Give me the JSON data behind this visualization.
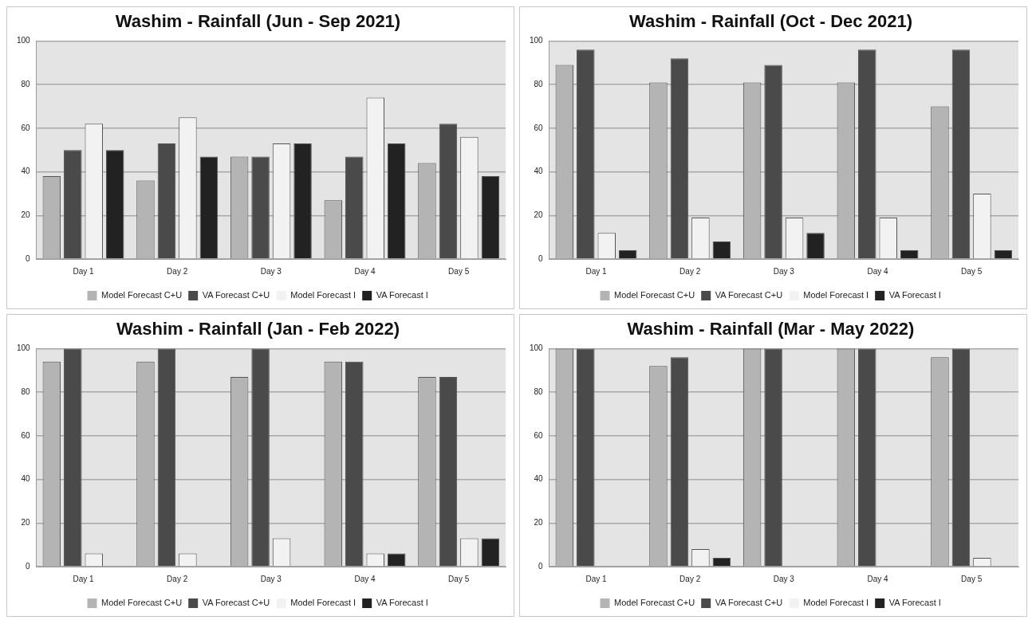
{
  "chart_data": [
    {
      "type": "bar",
      "title": "Washim - Rainfall (Jun - Sep 2021)",
      "categories": [
        "Day 1",
        "Day 2",
        "Day 3",
        "Day 4",
        "Day 5"
      ],
      "ylim": [
        0,
        100
      ],
      "yticks": [
        0,
        20,
        40,
        60,
        80,
        100
      ],
      "grid": "y",
      "legend": "bottom",
      "series": [
        {
          "name": "Model Forecast C+U",
          "color": "#b4b4b4",
          "values": [
            38,
            36,
            47,
            27,
            44
          ]
        },
        {
          "name": "VA Forecast C+U",
          "color": "#4a4a4a",
          "values": [
            50,
            53,
            47,
            47,
            62
          ]
        },
        {
          "name": "Model Forecast I",
          "color": "#f2f2f2",
          "values": [
            62,
            65,
            53,
            74,
            56
          ]
        },
        {
          "name": "VA Forecast I",
          "color": "#222222",
          "values": [
            50,
            47,
            53,
            53,
            38
          ]
        }
      ]
    },
    {
      "type": "bar",
      "title": "Washim - Rainfall (Oct - Dec 2021)",
      "categories": [
        "Day 1",
        "Day 2",
        "Day 3",
        "Day 4",
        "Day 5"
      ],
      "ylim": [
        0,
        100
      ],
      "yticks": [
        0,
        20,
        40,
        60,
        80,
        100
      ],
      "grid": "y",
      "legend": "bottom",
      "series": [
        {
          "name": "Model Forecast C+U",
          "color": "#b4b4b4",
          "values": [
            89,
            81,
            81,
            81,
            70
          ]
        },
        {
          "name": "VA Forecast C+U",
          "color": "#4a4a4a",
          "values": [
            96,
            92,
            89,
            96,
            96
          ]
        },
        {
          "name": "Model Forecast I",
          "color": "#f2f2f2",
          "values": [
            12,
            19,
            19,
            19,
            30
          ]
        },
        {
          "name": "VA Forecast I",
          "color": "#222222",
          "values": [
            4,
            8,
            12,
            4,
            4
          ]
        }
      ]
    },
    {
      "type": "bar",
      "title": "Washim - Rainfall (Jan - Feb 2022)",
      "categories": [
        "Day 1",
        "Day 2",
        "Day 3",
        "Day 4",
        "Day 5"
      ],
      "ylim": [
        0,
        100
      ],
      "yticks": [
        0,
        20,
        40,
        60,
        80,
        100
      ],
      "grid": "y",
      "legend": "bottom",
      "series": [
        {
          "name": "Model Forecast C+U",
          "color": "#b4b4b4",
          "values": [
            94,
            94,
            87,
            94,
            87
          ]
        },
        {
          "name": "VA Forecast C+U",
          "color": "#4a4a4a",
          "values": [
            100,
            100,
            100,
            94,
            87
          ]
        },
        {
          "name": "Model Forecast I",
          "color": "#f2f2f2",
          "values": [
            6,
            6,
            13,
            6,
            13
          ]
        },
        {
          "name": "VA Forecast I",
          "color": "#222222",
          "values": [
            0,
            0,
            0,
            6,
            13
          ]
        }
      ]
    },
    {
      "type": "bar",
      "title": "Washim - Rainfall (Mar - May 2022)",
      "categories": [
        "Day 1",
        "Day 2",
        "Day 3",
        "Day 4",
        "Day 5"
      ],
      "ylim": [
        0,
        100
      ],
      "yticks": [
        0,
        20,
        40,
        60,
        80,
        100
      ],
      "grid": "y",
      "legend": "bottom",
      "series": [
        {
          "name": "Model Forecast C+U",
          "color": "#b4b4b4",
          "values": [
            100,
            92,
            100,
            100,
            96
          ]
        },
        {
          "name": "VA Forecast C+U",
          "color": "#4a4a4a",
          "values": [
            100,
            96,
            100,
            100,
            100
          ]
        },
        {
          "name": "Model Forecast I",
          "color": "#f2f2f2",
          "values": [
            0,
            8,
            0,
            0,
            4
          ]
        },
        {
          "name": "VA Forecast I",
          "color": "#222222",
          "values": [
            0,
            4,
            0,
            0,
            0
          ]
        }
      ]
    }
  ]
}
